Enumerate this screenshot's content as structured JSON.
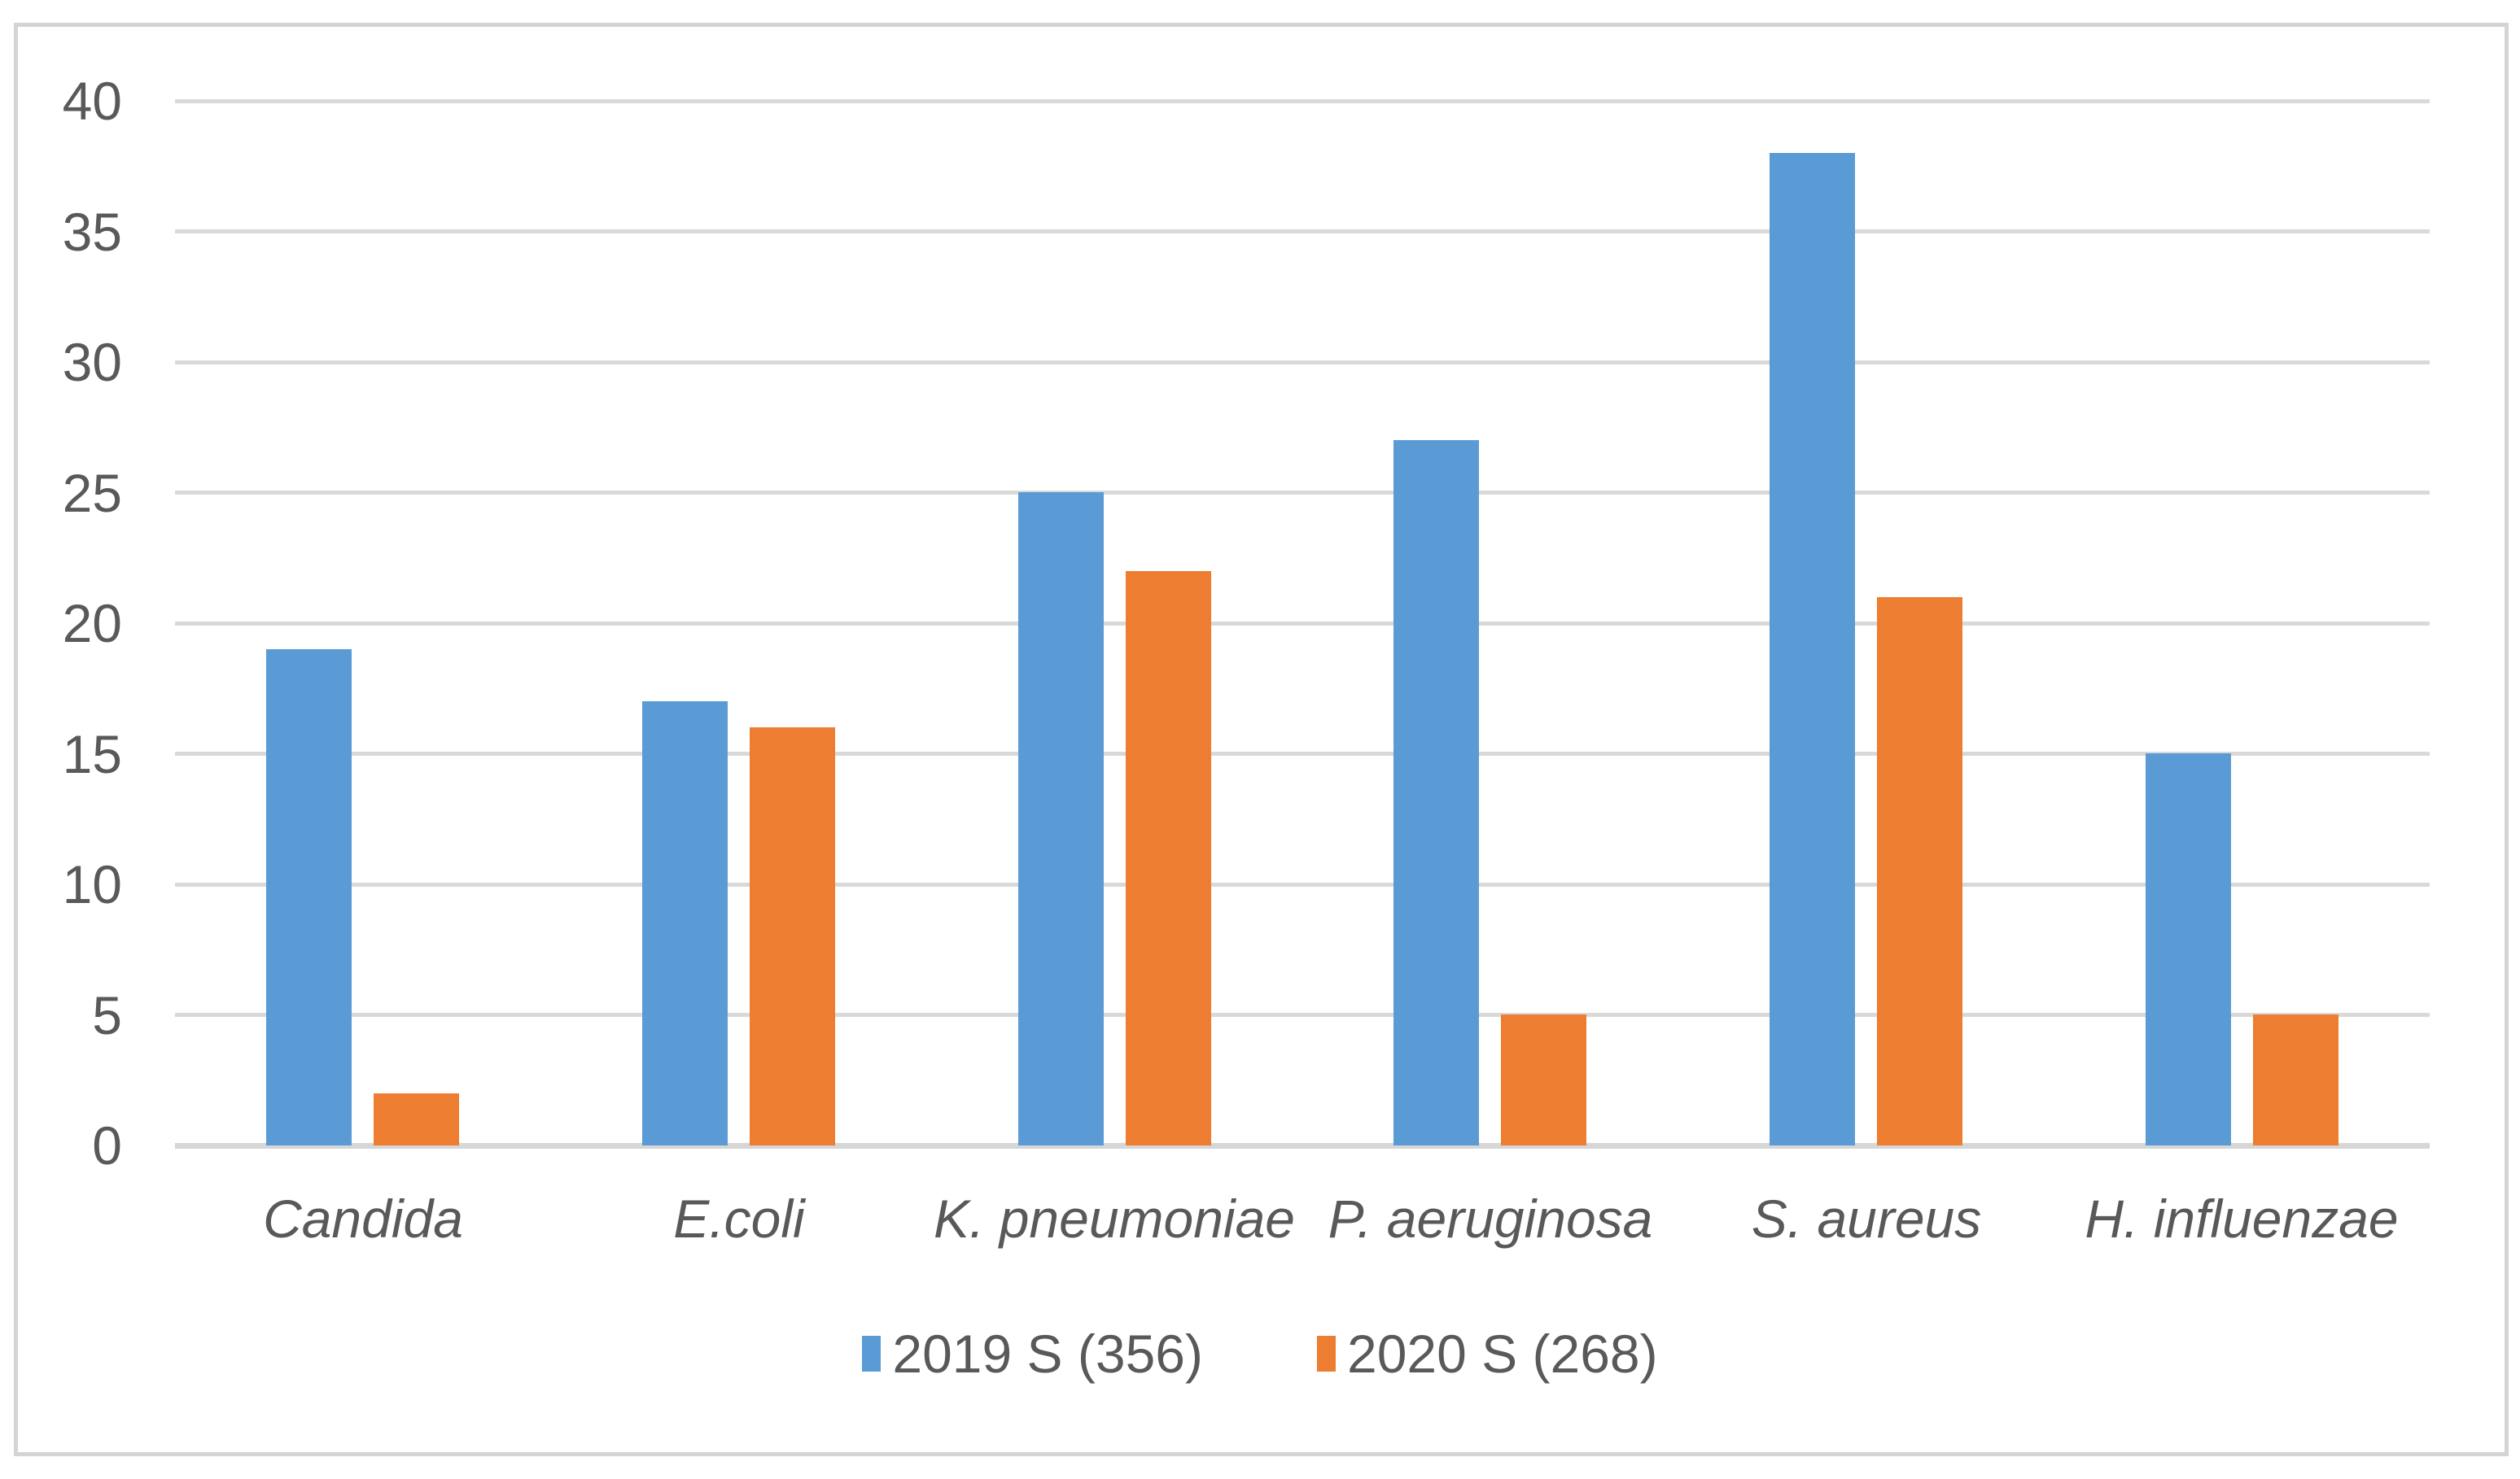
{
  "chart_data": {
    "type": "bar",
    "title": "",
    "categories": [
      "Candida",
      "E.coli",
      "K. pneumoniae",
      "P. aeruginosa",
      "S. aureus",
      "H. influenzae"
    ],
    "series": [
      {
        "name": "2019 S (356)",
        "color": "#5B9BD5",
        "values": [
          19,
          17,
          25,
          27,
          38,
          15
        ]
      },
      {
        "name": "2020 S (268)",
        "color": "#ED7D31",
        "values": [
          2,
          16,
          22,
          5,
          21,
          5
        ]
      }
    ],
    "ylim": [
      0,
      40
    ],
    "yticks": [
      0,
      5,
      10,
      15,
      20,
      25,
      30,
      35,
      40
    ],
    "grid": true,
    "legend_position": "bottom",
    "category_label_style": "italic"
  },
  "colors": {
    "series_blue": "#5B9BD5",
    "series_orange": "#ED7D31",
    "gridline": "#D9D9D9",
    "axis_line": "#D6D6D6",
    "text": "#595959",
    "frame_border": "#D4D4D4",
    "background": "#FFFFFF"
  }
}
